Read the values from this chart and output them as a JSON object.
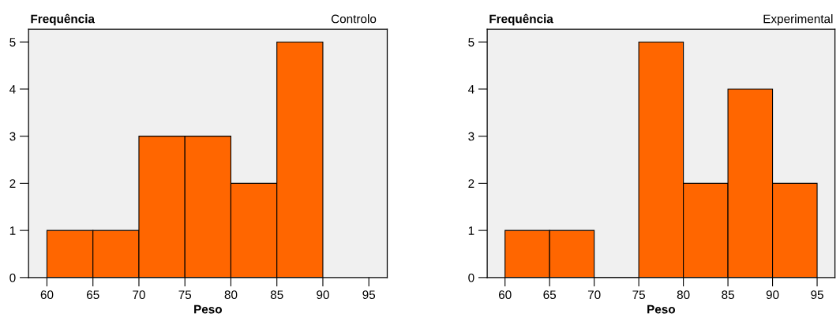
{
  "chart_data": [
    {
      "type": "histogram",
      "title": "Controlo",
      "ylabel": "Frequência",
      "xlabel": "Peso",
      "bins": [
        60,
        65,
        70,
        75,
        80,
        85,
        90
      ],
      "values": [
        1,
        1,
        3,
        3,
        2,
        5
      ],
      "color": "#ff6600",
      "xlim": [
        58,
        97
      ],
      "ylim": [
        0,
        5.27
      ],
      "xticks": [
        60,
        65,
        70,
        75,
        80,
        85,
        90,
        95
      ],
      "yticks": [
        0,
        1,
        2,
        3,
        4,
        5
      ]
    },
    {
      "type": "histogram",
      "title": "Experimental",
      "ylabel": "Frequência",
      "xlabel": "Peso",
      "bins": [
        60,
        65,
        70,
        75,
        80,
        85,
        90,
        95
      ],
      "values": [
        1,
        1,
        0,
        5,
        2,
        4,
        2
      ],
      "color": "#ff6600",
      "xlim": [
        58,
        97
      ],
      "ylim": [
        0,
        5.27
      ],
      "xticks": [
        60,
        65,
        70,
        75,
        80,
        85,
        90,
        95
      ],
      "yticks": [
        0,
        1,
        2,
        3,
        4,
        5
      ]
    }
  ]
}
